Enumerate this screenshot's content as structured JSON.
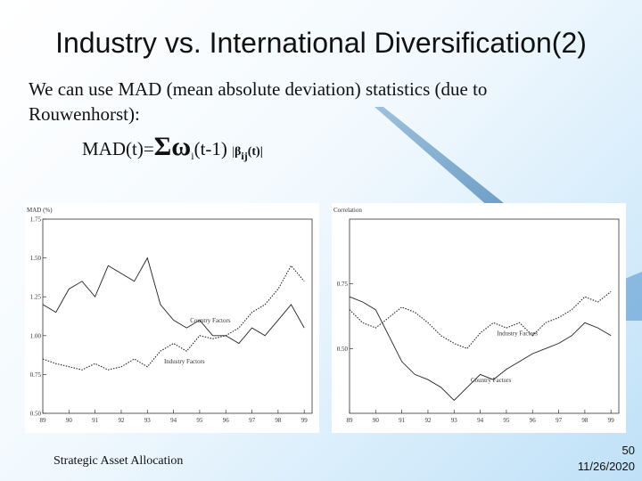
{
  "slide": {
    "title": "Industry vs. International Diversification(2)",
    "body": "We can use MAD (mean absolute deviation) statistics (due to Rouwenhorst):",
    "formula": {
      "lhs": "MAD(t)=",
      "sigma": "Σ",
      "omega": "ω",
      "omega_sub": "i",
      "arg": "(t-1) ",
      "beta_open": "|",
      "beta": "β",
      "beta_sub": "ij",
      "beta_close": "(t)|"
    },
    "footer_left": "Strategic Asset Allocation",
    "page_number": "50",
    "date": "11/26/2020"
  },
  "chart_data": [
    {
      "type": "line",
      "ylabel": "MAD (%)",
      "ylim": [
        0.5,
        1.75
      ],
      "yticks": [
        "1.75",
        "1.50",
        "1.25",
        "1.00",
        "0.75",
        "0.50"
      ],
      "xticks": [
        "89",
        "90",
        "91",
        "92",
        "93",
        "94",
        "95",
        "96",
        "97",
        "98",
        "99"
      ],
      "series": [
        {
          "name": "Country Factors",
          "style": "solid",
          "x": [
            89,
            89.5,
            90,
            90.5,
            91,
            91.5,
            92,
            92.5,
            93,
            93.5,
            94,
            94.5,
            95,
            95.5,
            96,
            96.5,
            97,
            97.5,
            98,
            98.5,
            99
          ],
          "y": [
            1.2,
            1.15,
            1.3,
            1.35,
            1.25,
            1.45,
            1.4,
            1.35,
            1.5,
            1.2,
            1.1,
            1.05,
            1.1,
            1.0,
            1.0,
            0.95,
            1.05,
            1.0,
            1.1,
            1.2,
            1.05
          ]
        },
        {
          "name": "Industry Factors",
          "style": "dotted",
          "x": [
            89,
            89.5,
            90,
            90.5,
            91,
            91.5,
            92,
            92.5,
            93,
            93.5,
            94,
            94.5,
            95,
            95.5,
            96,
            96.5,
            97,
            97.5,
            98,
            98.5,
            99
          ],
          "y": [
            0.85,
            0.82,
            0.8,
            0.78,
            0.82,
            0.78,
            0.8,
            0.85,
            0.8,
            0.9,
            0.95,
            0.9,
            1.0,
            0.98,
            1.0,
            1.05,
            1.15,
            1.2,
            1.3,
            1.45,
            1.35
          ]
        }
      ]
    },
    {
      "type": "line",
      "ylabel": "Correlation",
      "ylim": [
        0.25,
        1.0
      ],
      "yticks": [
        "0.75",
        "0.50"
      ],
      "xticks": [
        "89",
        "90",
        "91",
        "92",
        "93",
        "94",
        "95",
        "96",
        "97",
        "98",
        "99"
      ],
      "series": [
        {
          "name": "Industry Factors",
          "style": "dotted",
          "x": [
            89,
            89.5,
            90,
            90.5,
            91,
            91.5,
            92,
            92.5,
            93,
            93.5,
            94,
            94.5,
            95,
            95.5,
            96,
            96.5,
            97,
            97.5,
            98,
            98.5,
            99
          ],
          "y": [
            0.65,
            0.6,
            0.58,
            0.62,
            0.66,
            0.64,
            0.6,
            0.55,
            0.52,
            0.5,
            0.56,
            0.6,
            0.58,
            0.6,
            0.55,
            0.6,
            0.62,
            0.65,
            0.7,
            0.68,
            0.72
          ]
        },
        {
          "name": "Country Factors",
          "style": "solid",
          "x": [
            89,
            89.5,
            90,
            90.5,
            91,
            91.5,
            92,
            92.5,
            93,
            93.5,
            94,
            94.5,
            95,
            95.5,
            96,
            96.5,
            97,
            97.5,
            98,
            98.5,
            99
          ],
          "y": [
            0.7,
            0.68,
            0.65,
            0.55,
            0.45,
            0.4,
            0.38,
            0.35,
            0.3,
            0.35,
            0.4,
            0.38,
            0.42,
            0.45,
            0.48,
            0.5,
            0.52,
            0.55,
            0.6,
            0.58,
            0.55
          ]
        }
      ]
    }
  ]
}
